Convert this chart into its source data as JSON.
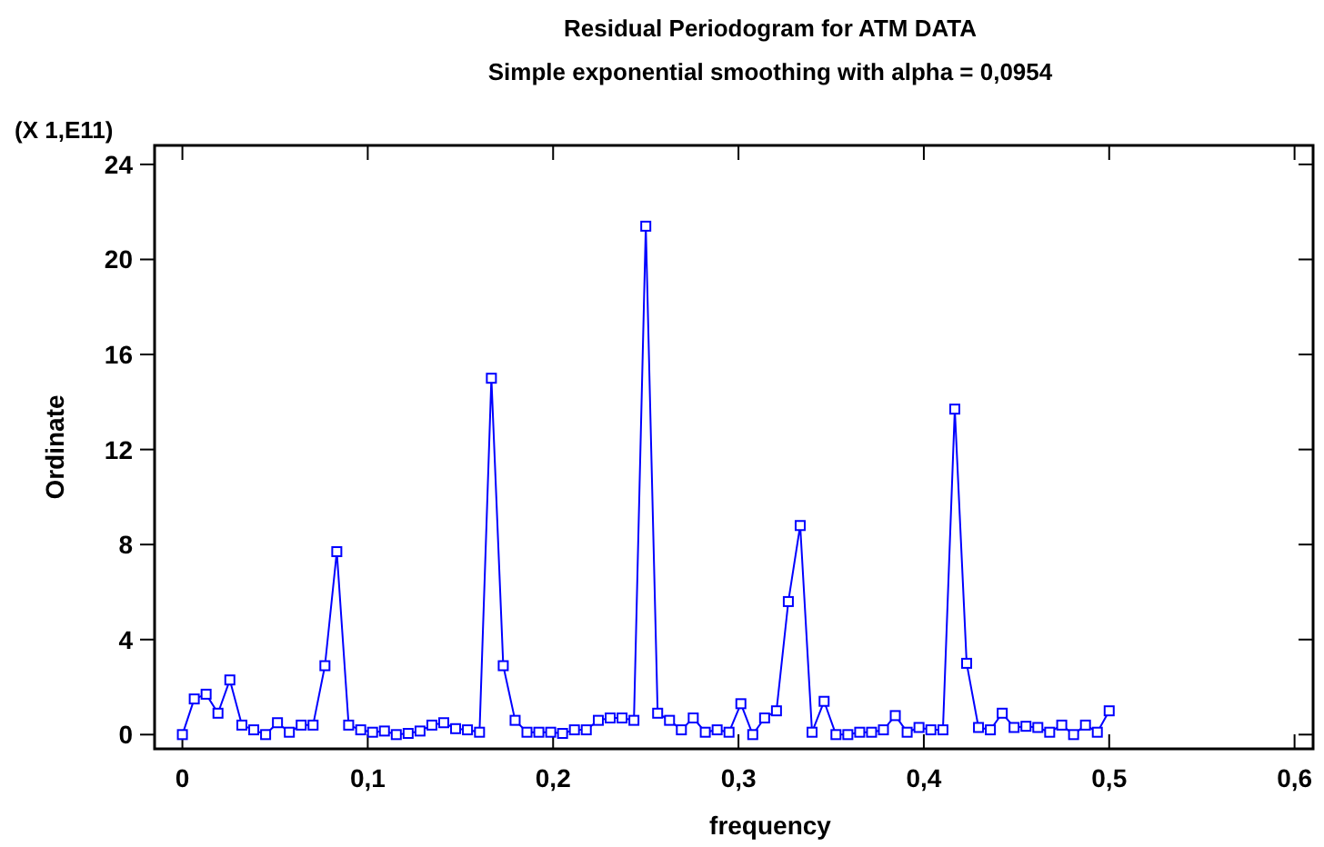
{
  "chart_data": {
    "type": "line",
    "title": "Residual Periodogram for ATM DATA",
    "subtitle": "Simple exponential smoothing with alpha = 0,0954",
    "xlabel": "frequency",
    "ylabel": "Ordinate",
    "annotations": [
      "(X 1,E11)"
    ],
    "x": [
      0,
      0.0064,
      0.0128,
      0.0192,
      0.0256,
      0.0321,
      0.0385,
      0.0449,
      0.0513,
      0.0577,
      0.0641,
      0.0705,
      0.0769,
      0.0833,
      0.0897,
      0.0962,
      0.1026,
      0.109,
      0.1154,
      0.1218,
      0.1282,
      0.1346,
      0.141,
      0.1474,
      0.1538,
      0.1603,
      0.1667,
      0.1731,
      0.1795,
      0.1859,
      0.1923,
      0.1987,
      0.2051,
      0.2115,
      0.2179,
      0.2244,
      0.2308,
      0.2372,
      0.2436,
      0.25,
      0.2564,
      0.2628,
      0.2692,
      0.2756,
      0.2821,
      0.2885,
      0.2949,
      0.3013,
      0.3077,
      0.3141,
      0.3205,
      0.3269,
      0.3333,
      0.3397,
      0.3462,
      0.3526,
      0.359,
      0.3654,
      0.3718,
      0.3782,
      0.3846,
      0.391,
      0.3974,
      0.4038,
      0.4103,
      0.4167,
      0.4231,
      0.4295,
      0.4359,
      0.4423,
      0.4487,
      0.4551,
      0.4615,
      0.4679,
      0.4744,
      0.4808,
      0.4872,
      0.4936,
      0.5
    ],
    "series": [
      {
        "color": "#0000ff",
        "values": [
          0,
          1.5,
          1.7,
          0.9,
          2.3,
          0.4,
          0.2,
          0.0,
          0.5,
          0.1,
          0.4,
          0.4,
          2.9,
          7.7,
          0.4,
          0.2,
          0.1,
          0.15,
          0.0,
          0.05,
          0.15,
          0.4,
          0.5,
          0.25,
          0.2,
          0.1,
          15.0,
          2.9,
          0.6,
          0.1,
          0.1,
          0.1,
          0.05,
          0.2,
          0.2,
          0.6,
          0.7,
          0.7,
          0.6,
          21.4,
          0.9,
          0.6,
          0.2,
          0.7,
          0.1,
          0.2,
          0.1,
          1.3,
          0.0,
          0.7,
          1.0,
          5.6,
          8.8,
          0.1,
          1.4,
          0.0,
          0.0,
          0.1,
          0.1,
          0.2,
          0.8,
          0.1,
          0.3,
          0.2,
          0.2,
          13.7,
          3.0,
          0.3,
          0.2,
          0.9,
          0.3,
          0.35,
          0.3,
          0.1,
          0.4,
          0.0,
          0.4,
          0.1,
          1.0
        ]
      }
    ],
    "xlim": [
      -0.015,
      0.61
    ],
    "xticks": [
      {
        "value": 0,
        "label": "0"
      },
      {
        "value": 0.1,
        "label": "0,1"
      },
      {
        "value": 0.2,
        "label": "0,2"
      },
      {
        "value": 0.3,
        "label": "0,3"
      },
      {
        "value": 0.4,
        "label": "0,4"
      },
      {
        "value": 0.5,
        "label": "0,5"
      },
      {
        "value": 0.6,
        "label": "0,6"
      }
    ],
    "ylim": [
      -0.6,
      24.8
    ],
    "yticks": [
      0,
      4,
      8,
      12,
      16,
      20,
      24
    ],
    "grid": false,
    "marker": "square",
    "line_style": "solid"
  }
}
